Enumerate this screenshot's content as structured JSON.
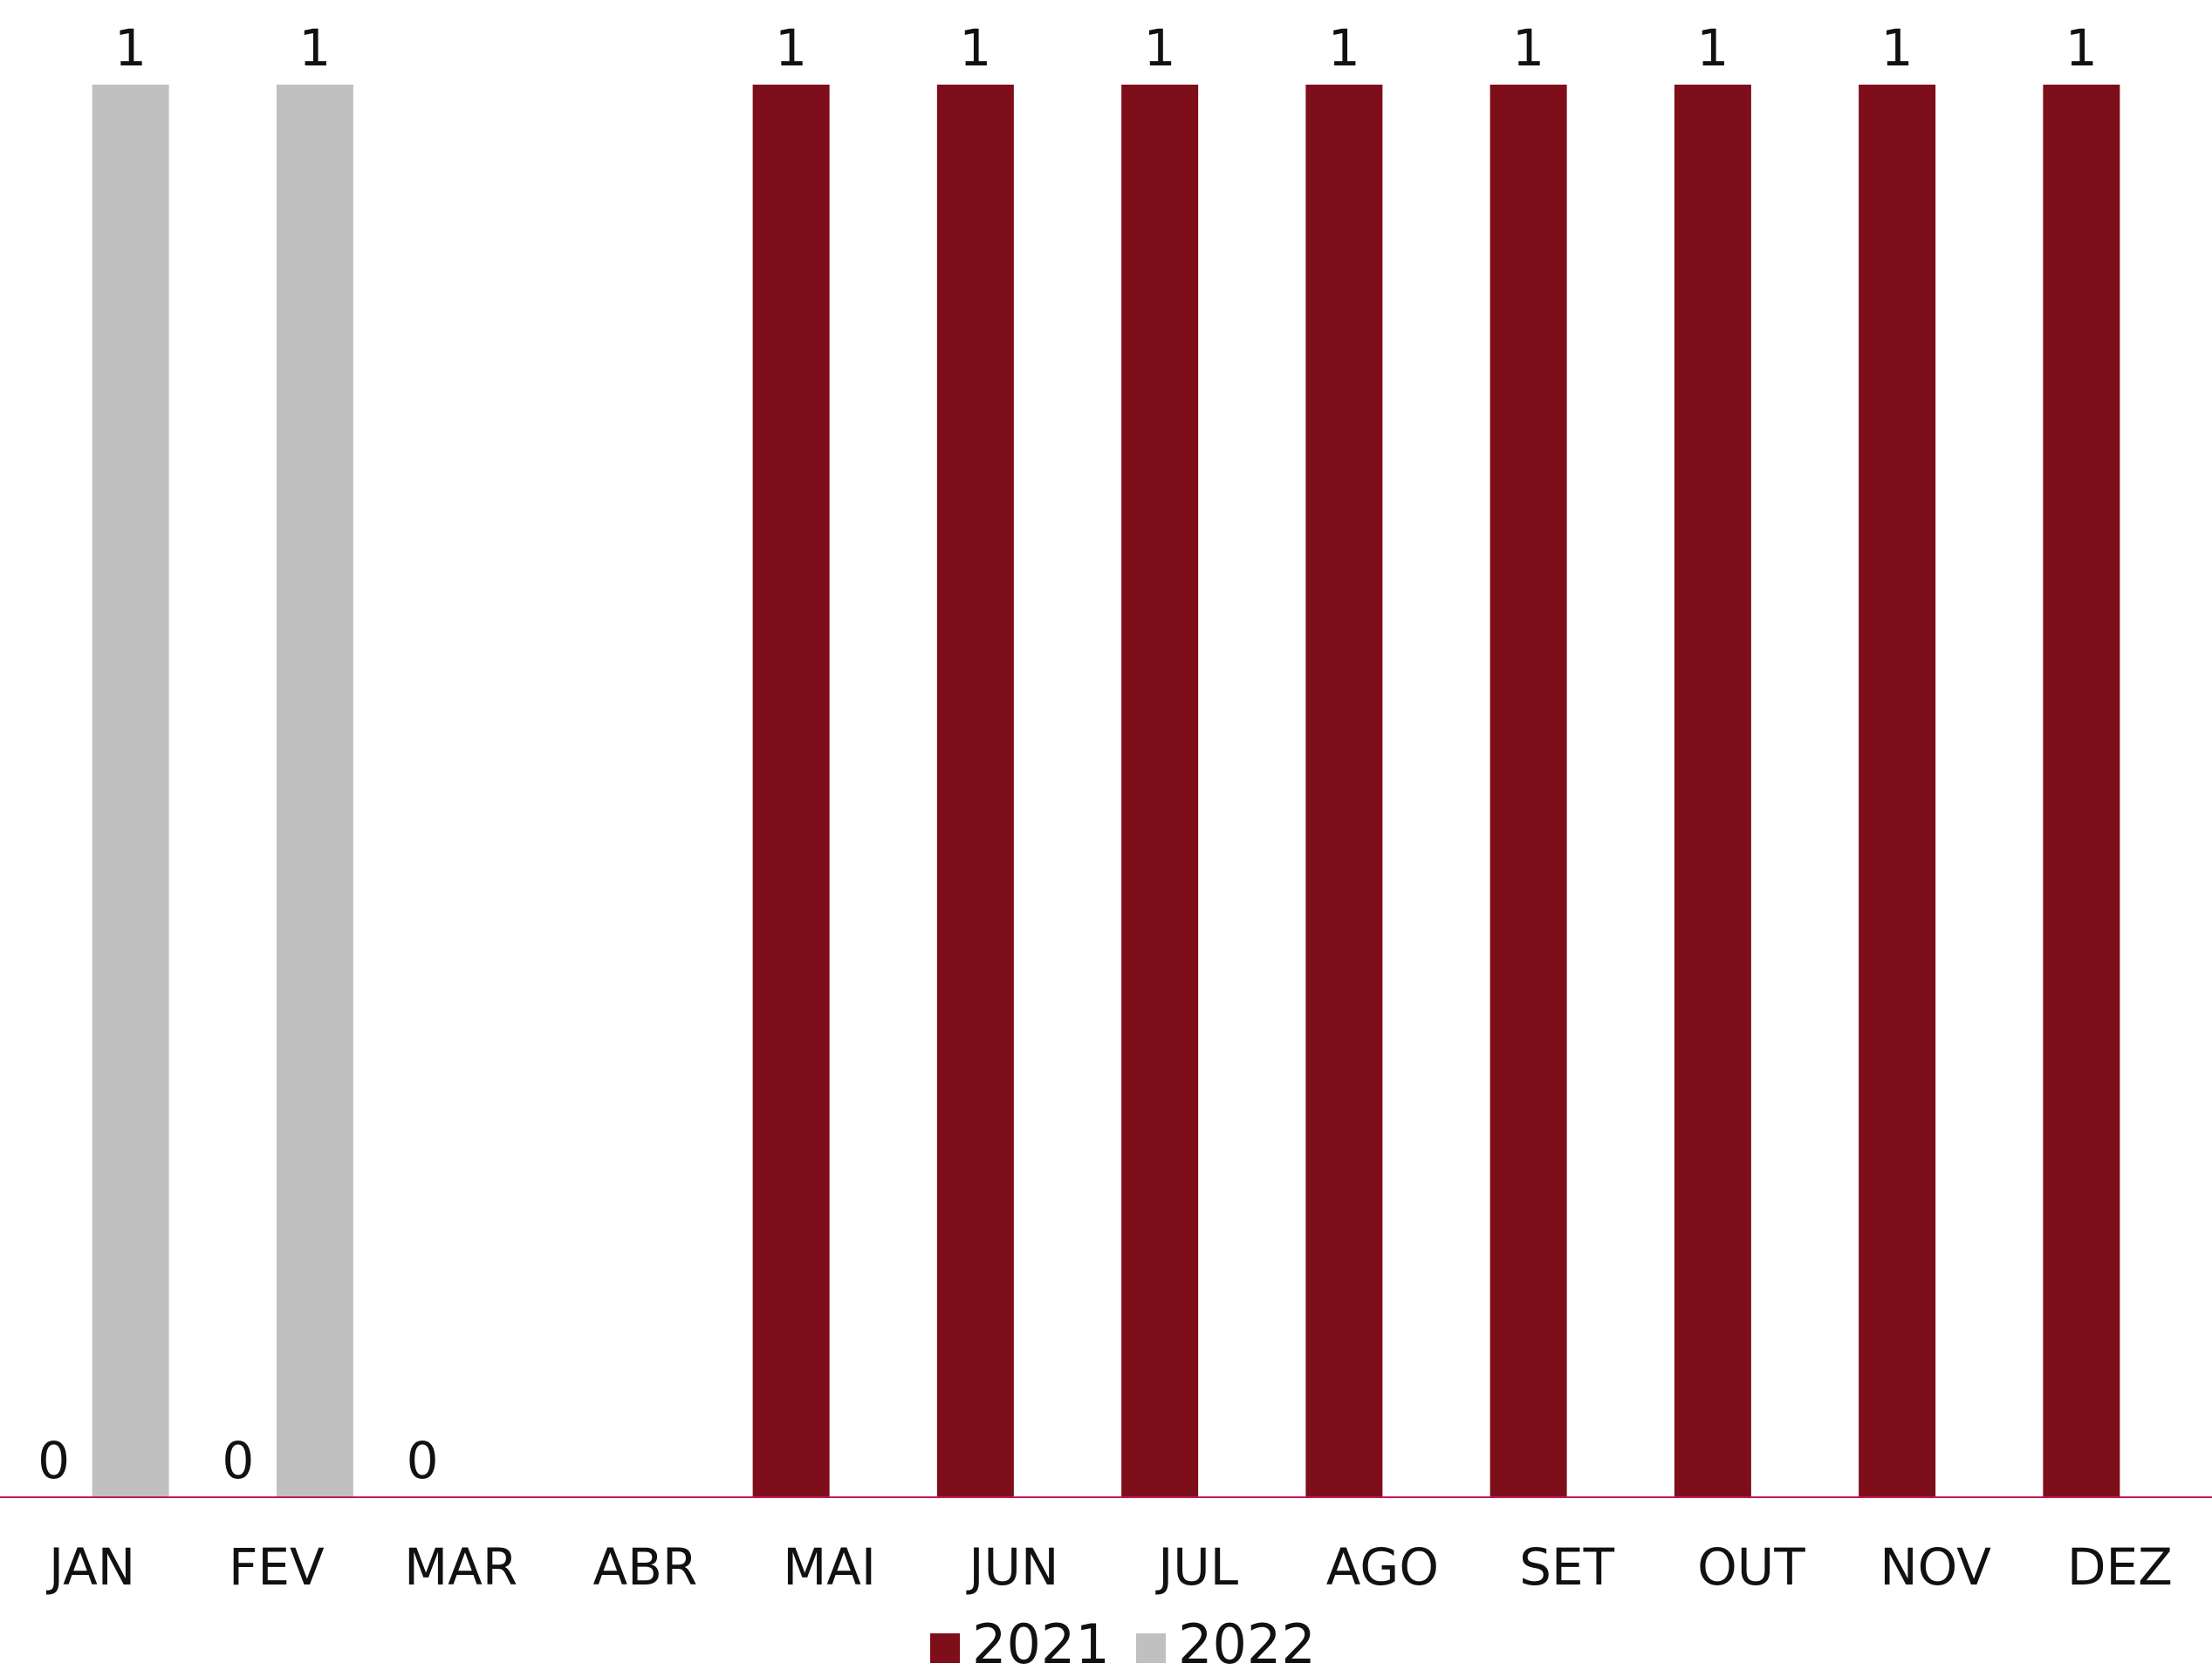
{
  "chart_data": {
    "type": "bar",
    "title": "",
    "xlabel": "",
    "ylabel": "",
    "categories": [
      "JAN",
      "FEV",
      "MAR",
      "ABR",
      "MAI",
      "JUN",
      "JUL",
      "AGO",
      "SET",
      "OUT",
      "NOV",
      "DEZ"
    ],
    "series": [
      {
        "name": "2021",
        "color": "#7d0e1a",
        "values": [
          0,
          0,
          0,
          null,
          1,
          1,
          1,
          1,
          1,
          1,
          1,
          1
        ]
      },
      {
        "name": "2022",
        "color": "#c0c0c0",
        "values": [
          1,
          1,
          null,
          null,
          null,
          null,
          null,
          null,
          null,
          null,
          null,
          null
        ]
      }
    ],
    "ylim": [
      0,
      1
    ],
    "grid": false,
    "legend_position": "bottom",
    "axis_line_color": "#c2185b"
  }
}
